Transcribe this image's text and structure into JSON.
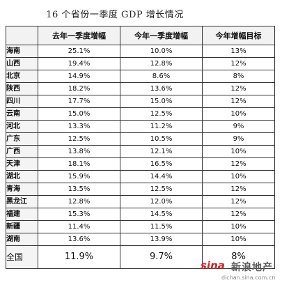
{
  "title": "16 个省份一季度 GDP 增长情况",
  "columns": [
    "",
    "去年一季度增幅",
    "今年一季度增幅",
    "今年增幅目标"
  ],
  "rows": [
    {
      "province": "海南",
      "last_q1": "25.1%",
      "this_q1": "10.0%",
      "target": "13%"
    },
    {
      "province": "山西",
      "last_q1": "19.4%",
      "this_q1": "12.8%",
      "target": "12%"
    },
    {
      "province": "北京",
      "last_q1": "14.9%",
      "this_q1": "8.6%",
      "target": "8%"
    },
    {
      "province": "陕西",
      "last_q1": "18.2%",
      "this_q1": "13.6%",
      "target": "12%"
    },
    {
      "province": "四川",
      "last_q1": "17.7%",
      "this_q1": "15.0%",
      "target": "12%"
    },
    {
      "province": "云南",
      "last_q1": "15.0%",
      "this_q1": "12.5%",
      "target": "10%"
    },
    {
      "province": "河北",
      "last_q1": "13.3%",
      "this_q1": "11.2%",
      "target": "9%"
    },
    {
      "province": "广东",
      "last_q1": "12.5%",
      "this_q1": "10.5%",
      "target": "9%"
    },
    {
      "province": "广西",
      "last_q1": "13.8%",
      "this_q1": "12.1%",
      "target": "10%"
    },
    {
      "province": "天津",
      "last_q1": "18.1%",
      "this_q1": "16.5%",
      "target": "12%"
    },
    {
      "province": "湖北",
      "last_q1": "15.9%",
      "this_q1": "14.4%",
      "target": "10%"
    },
    {
      "province": "青海",
      "last_q1": "13.5%",
      "this_q1": "12.5%",
      "target": "12%"
    },
    {
      "province": "黑龙江",
      "last_q1": "12.8%",
      "this_q1": "12.0%",
      "target": "12%"
    },
    {
      "province": "福建",
      "last_q1": "15.3%",
      "this_q1": "14.5%",
      "target": "12%"
    },
    {
      "province": "新疆",
      "last_q1": "11.4%",
      "this_q1": "11.5%",
      "target": "10%"
    },
    {
      "province": "湖南",
      "last_q1": "13.6%",
      "this_q1": "13.9%",
      "target": "10%"
    }
  ],
  "total": {
    "province": "全国",
    "last_q1": "11.9%",
    "this_q1": "9.7%",
    "target": "8%"
  },
  "watermark": {
    "logo": "sina",
    "name": "新浪地产",
    "url": "dichan.sina.com.cn"
  }
}
